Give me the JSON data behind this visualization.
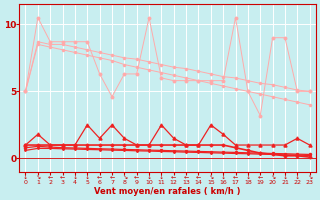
{
  "x": [
    0,
    1,
    2,
    3,
    4,
    5,
    6,
    7,
    8,
    9,
    10,
    11,
    12,
    13,
    14,
    15,
    16,
    17,
    18,
    19,
    20,
    21,
    22,
    23
  ],
  "background_color": "#c8eef0",
  "grid_color": "#b0dde0",
  "xlabel": "Vent moyen/en rafales ( km/h )",
  "yticks": [
    0,
    5,
    10
  ],
  "ylim": [
    -1.0,
    11.5
  ],
  "xlim": [
    -0.5,
    23.5
  ],
  "line1_color": "#ffaaaa",
  "line1_values": [
    5.0,
    10.5,
    8.7,
    8.7,
    8.7,
    8.7,
    6.3,
    4.6,
    6.3,
    6.3,
    10.5,
    6.0,
    5.8,
    5.8,
    5.8,
    5.8,
    5.8,
    10.5,
    5.0,
    3.2,
    9.0,
    9.0,
    5.0,
    5.0
  ],
  "line2_color": "#ffaaaa",
  "line2_values": [
    5.0,
    8.7,
    8.5,
    8.5,
    8.3,
    8.1,
    7.9,
    7.7,
    7.5,
    7.4,
    7.2,
    7.0,
    6.8,
    6.7,
    6.5,
    6.3,
    6.1,
    6.0,
    5.8,
    5.6,
    5.5,
    5.3,
    5.1,
    5.0
  ],
  "line3_color": "#ffaaaa",
  "line3_values": [
    5.0,
    8.5,
    8.3,
    8.1,
    7.9,
    7.7,
    7.5,
    7.3,
    7.0,
    6.8,
    6.6,
    6.4,
    6.2,
    6.0,
    5.8,
    5.6,
    5.4,
    5.2,
    5.0,
    4.8,
    4.6,
    4.4,
    4.2,
    4.0
  ],
  "line4_color": "#ee2222",
  "line4_values": [
    1.0,
    1.8,
    1.0,
    1.0,
    1.0,
    2.5,
    1.5,
    2.5,
    1.5,
    1.0,
    1.0,
    2.5,
    1.5,
    1.0,
    1.0,
    2.5,
    1.8,
    1.0,
    1.0,
    1.0,
    1.0,
    1.0,
    1.5,
    1.0
  ],
  "line5_color": "#ee2222",
  "line5_values": [
    1.0,
    1.0,
    1.0,
    1.0,
    1.0,
    1.0,
    1.0,
    1.0,
    1.0,
    1.0,
    1.0,
    1.0,
    1.0,
    1.0,
    1.0,
    1.0,
    1.0,
    0.8,
    0.6,
    0.4,
    0.3,
    0.2,
    0.2,
    0.1
  ],
  "line6_color": "#ee2222",
  "line6_values": [
    0.8,
    0.9,
    0.85,
    0.8,
    0.78,
    0.75,
    0.72,
    0.7,
    0.67,
    0.65,
    0.62,
    0.6,
    0.57,
    0.55,
    0.52,
    0.5,
    0.47,
    0.45,
    0.42,
    0.4,
    0.37,
    0.35,
    0.32,
    0.3
  ],
  "line7_color": "#ee2222",
  "line7_values": [
    0.6,
    0.75,
    0.75,
    0.72,
    0.7,
    0.67,
    0.65,
    0.62,
    0.6,
    0.57,
    0.55,
    0.52,
    0.5,
    0.47,
    0.45,
    0.42,
    0.4,
    0.37,
    0.35,
    0.32,
    0.3,
    0.27,
    0.25,
    0.22
  ],
  "wind_arrows": [
    "↓",
    "↘",
    "←",
    "←",
    "↓",
    "↓",
    "←",
    "←",
    "↘",
    "←",
    "↓",
    "↓",
    "←",
    "←",
    "←",
    "↘",
    "↓",
    "←",
    "↓",
    "←",
    "↘",
    "↓",
    "↓",
    "↘"
  ]
}
